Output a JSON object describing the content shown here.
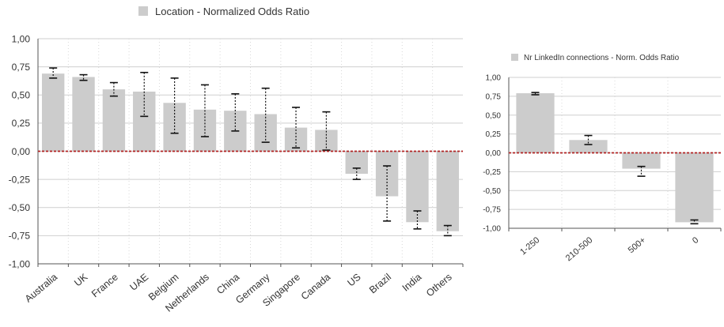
{
  "colors": {
    "bar": "#cccccc",
    "grid": "#cfcfcf",
    "zero_line": "#b22222",
    "error_bar": "#111111",
    "text": "#333333"
  },
  "chart_data": [
    {
      "type": "bar",
      "title": "",
      "legend": "Location - Normalized Odds Ratio",
      "legend_position": "top",
      "categories": [
        "Australia",
        "UK",
        "France",
        "UAE",
        "Belgium",
        "Netherlands",
        "China",
        "Germany",
        "Singapore",
        "Canada",
        "US",
        "Brazil",
        "India",
        "Others"
      ],
      "series": [
        {
          "name": "Location - Normalized Odds Ratio",
          "values": [
            0.69,
            0.66,
            0.55,
            0.53,
            0.43,
            0.37,
            0.36,
            0.33,
            0.21,
            0.19,
            -0.2,
            -0.4,
            -0.63,
            -0.71
          ],
          "error_low": [
            0.65,
            0.63,
            0.49,
            0.31,
            0.16,
            0.13,
            0.18,
            0.08,
            0.03,
            0.01,
            -0.25,
            -0.62,
            -0.69,
            -0.75
          ],
          "error_high": [
            0.74,
            0.68,
            0.61,
            0.7,
            0.65,
            0.59,
            0.51,
            0.56,
            0.39,
            0.35,
            -0.15,
            -0.13,
            -0.53,
            -0.66
          ]
        }
      ],
      "ylim": [
        -1,
        1
      ],
      "yticks": [
        "1,00",
        "0,75",
        "0,50",
        "0,25",
        "0,00",
        "-0,25",
        "-0,50",
        "-0,75",
        "-1,00"
      ],
      "grid": true,
      "xlabel": "",
      "ylabel": ""
    },
    {
      "type": "bar",
      "title": "",
      "legend": "Nr LinkedIn connections - Norm. Odds Ratio",
      "legend_position": "top",
      "categories": [
        "1-250",
        "210-500",
        "500+",
        "0"
      ],
      "series": [
        {
          "name": "Nr LinkedIn connections - Norm. Odds Ratio",
          "values": [
            0.79,
            0.17,
            -0.21,
            -0.92
          ],
          "error_low": [
            0.77,
            0.11,
            -0.31,
            -0.94
          ],
          "error_high": [
            0.8,
            0.23,
            -0.18,
            -0.89
          ]
        }
      ],
      "ylim": [
        -1,
        1
      ],
      "yticks": [
        "1,00",
        "0,75",
        "0,50",
        "0,25",
        "0,00",
        "-0,25",
        "-0,50",
        "-0,75",
        "-1,00"
      ],
      "grid": true,
      "xlabel": "",
      "ylabel": ""
    }
  ]
}
